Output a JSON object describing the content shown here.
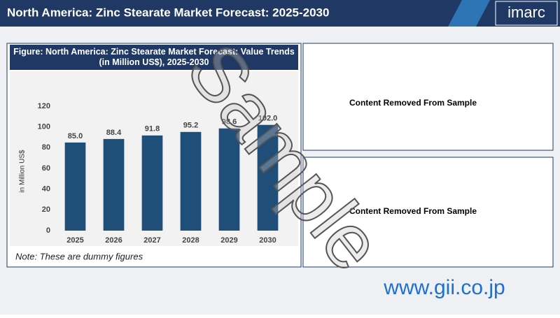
{
  "header": {
    "title": "North America: Zinc Stearate Market Forecast: 2025-2030",
    "logo": "imarc"
  },
  "chart_data": {
    "type": "bar",
    "title": "Figure: North America: Zinc Stearate Market Forecast: Value Trends (in Million US$), 2025-2030",
    "y_label": "in Million US$",
    "categories": [
      "2025",
      "2026",
      "2027",
      "2028",
      "2029",
      "2030"
    ],
    "values": [
      85.0,
      88.4,
      91.8,
      95.2,
      98.6,
      102.0
    ],
    "value_labels": [
      "85.0",
      "88.4",
      "91.8",
      "95.2",
      "98.6",
      "102.0"
    ],
    "color": "#1f4e79",
    "ylim": [
      0,
      120
    ],
    "yticks": [
      0,
      20,
      40,
      60,
      80,
      100,
      120
    ],
    "grid": false,
    "note": "Note: These are dummy figures"
  },
  "panels": [
    "Content Removed From Sample",
    "Content Removed From Sample"
  ],
  "watermark": "Sample",
  "footer": {
    "url": "www.gii.co.jp"
  }
}
